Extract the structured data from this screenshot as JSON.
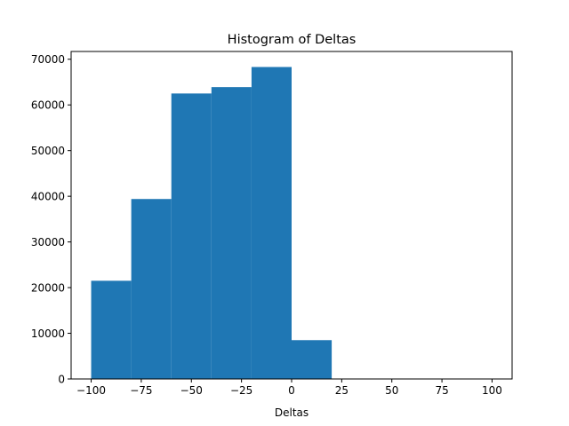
{
  "chart_data": {
    "type": "bar",
    "title": "Histogram of Deltas",
    "xlabel": "Deltas",
    "ylabel": "",
    "bin_edges": [
      -100,
      -80,
      -60,
      -40,
      -20,
      0,
      20,
      40,
      60,
      80,
      100
    ],
    "values": [
      21500,
      39400,
      62500,
      63900,
      68300,
      8500,
      0,
      0,
      0,
      0
    ],
    "xlim": [
      -110,
      110
    ],
    "ylim": [
      0,
      71700
    ],
    "xticks": [
      -100,
      -75,
      -50,
      -25,
      0,
      25,
      50,
      75,
      100
    ],
    "xtick_labels": [
      "−100",
      "−75",
      "−50",
      "−25",
      "0",
      "25",
      "50",
      "75",
      "100"
    ],
    "yticks": [
      0,
      10000,
      20000,
      30000,
      40000,
      50000,
      60000,
      70000
    ],
    "ytick_labels": [
      "0",
      "10000",
      "20000",
      "30000",
      "40000",
      "50000",
      "60000",
      "70000"
    ],
    "bar_color": "#1f77b4",
    "grid": false,
    "legend": "none"
  }
}
